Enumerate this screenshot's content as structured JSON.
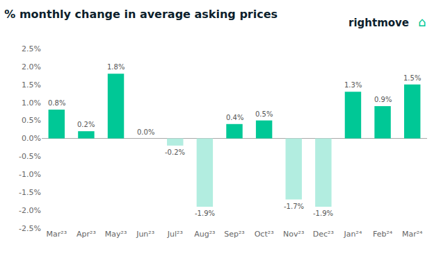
{
  "chart_data": {
    "type": "bar",
    "title": "% monthly change in average asking prices",
    "categories": [
      "Mar²³",
      "Apr²³",
      "May²³",
      "Jun²³",
      "Jul²³",
      "Aug²³",
      "Sep²³",
      "Oct²³",
      "Nov²³",
      "Dec²³",
      "Jan²⁴",
      "Feb²⁴",
      "Mar²⁴"
    ],
    "values": [
      0.8,
      0.2,
      1.8,
      0.0,
      -0.2,
      -1.9,
      0.4,
      0.5,
      -1.7,
      -1.9,
      1.3,
      0.9,
      1.5
    ],
    "value_labels": [
      "0.8%",
      "0.2%",
      "1.8%",
      "0.0%",
      "-0.2%",
      "-1.9%",
      "0.4%",
      "0.5%",
      "-1.7%",
      "-1.9%",
      "1.3%",
      "0.9%",
      "1.5%"
    ],
    "data_labels": true,
    "colors": [
      "#00c896",
      "#00c896",
      "#00c896",
      "#00c896",
      "#b2ede0",
      "#b2ede0",
      "#00c896",
      "#00c896",
      "#b2ede0",
      "#b2ede0",
      "#00c896",
      "#00c896",
      "#00c896"
    ],
    "ylim": [
      -2.5,
      2.5
    ],
    "yticks": [
      {
        "value": -2.5,
        "label": "-2.5%"
      },
      {
        "value": -2.0,
        "label": "-2.0%"
      },
      {
        "value": -1.5,
        "label": "-1.5%"
      },
      {
        "value": -1.0,
        "label": "-1.0%"
      },
      {
        "value": -0.5,
        "label": "-0.5%"
      },
      {
        "value": 0.0,
        "label": "0.0%"
      },
      {
        "value": 0.5,
        "label": "0.5%"
      },
      {
        "value": 1.0,
        "label": "1.0%"
      },
      {
        "value": 1.5,
        "label": "1.5%"
      },
      {
        "value": 2.0,
        "label": "2.0%"
      },
      {
        "value": 2.5,
        "label": "2.5%"
      }
    ],
    "grid": false,
    "annotations": [
      "rightmove",
      "⌂"
    ]
  }
}
